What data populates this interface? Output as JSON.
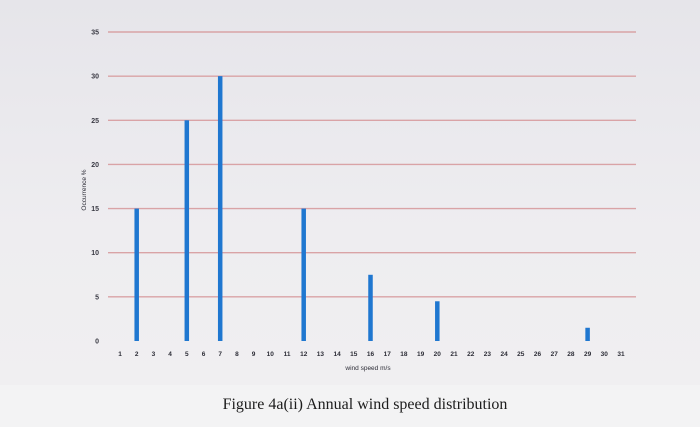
{
  "chart_data": {
    "type": "bar",
    "title": "",
    "xlabel": "wind speed m/s",
    "ylabel": "Occurrence %",
    "ylim": [
      0,
      35
    ],
    "yticks": [
      0,
      5,
      10,
      15,
      20,
      25,
      30,
      35
    ],
    "categories": [
      "1",
      "2",
      "3",
      "4",
      "5",
      "6",
      "7",
      "8",
      "9",
      "10",
      "11",
      "12",
      "13",
      "14",
      "15",
      "16",
      "17",
      "18",
      "19",
      "20",
      "21",
      "22",
      "23",
      "24",
      "25",
      "26",
      "27",
      "28",
      "29",
      "30",
      "31"
    ],
    "values": [
      0,
      15,
      0,
      0,
      25,
      0,
      30,
      0,
      0,
      0,
      0,
      15,
      0,
      0,
      0,
      7.5,
      0,
      0,
      0,
      4.5,
      0,
      0,
      0,
      0,
      0,
      0,
      0,
      0,
      1.5,
      0,
      0
    ],
    "grid": true,
    "bar_color": "#1f77d0",
    "grid_color": "#d9a3a6"
  },
  "caption": "Figure 4a(ii) Annual wind speed distribution"
}
